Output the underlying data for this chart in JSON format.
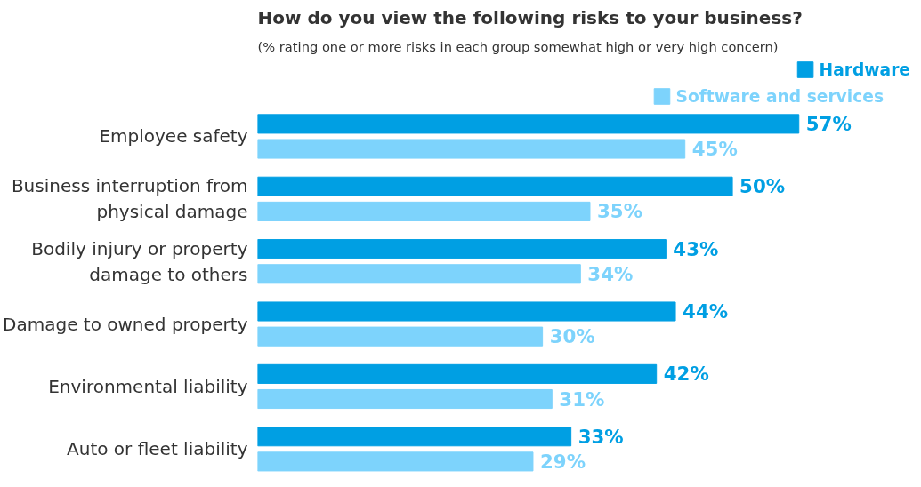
{
  "chart_data": {
    "type": "bar",
    "orientation": "horizontal",
    "title": "How do you view the following risks to your business?",
    "subtitle": "(% rating one or more risks in each group somewhat high or very high concern)",
    "categories": [
      "Employee safety",
      "Business interruption from\nphysical damage",
      "Bodily injury or property\ndamage to others",
      "Damage to owned property",
      "Environmental liability",
      "Auto or fleet liability"
    ],
    "series": [
      {
        "name": "Hardware",
        "color": "#009fe3",
        "values": [
          57,
          50,
          43,
          44,
          42,
          33
        ],
        "value_labels": [
          "57%",
          "50%",
          "43%",
          "44%",
          "42%",
          "33%"
        ]
      },
      {
        "name": "Software and services",
        "color": "#7dd3fc",
        "values": [
          45,
          35,
          34,
          30,
          31,
          29
        ],
        "value_labels": [
          "45%",
          "35%",
          "34%",
          "30%",
          "31%",
          "29%"
        ]
      }
    ],
    "tick_labels": "y",
    "grid": false,
    "legend": "top right"
  }
}
